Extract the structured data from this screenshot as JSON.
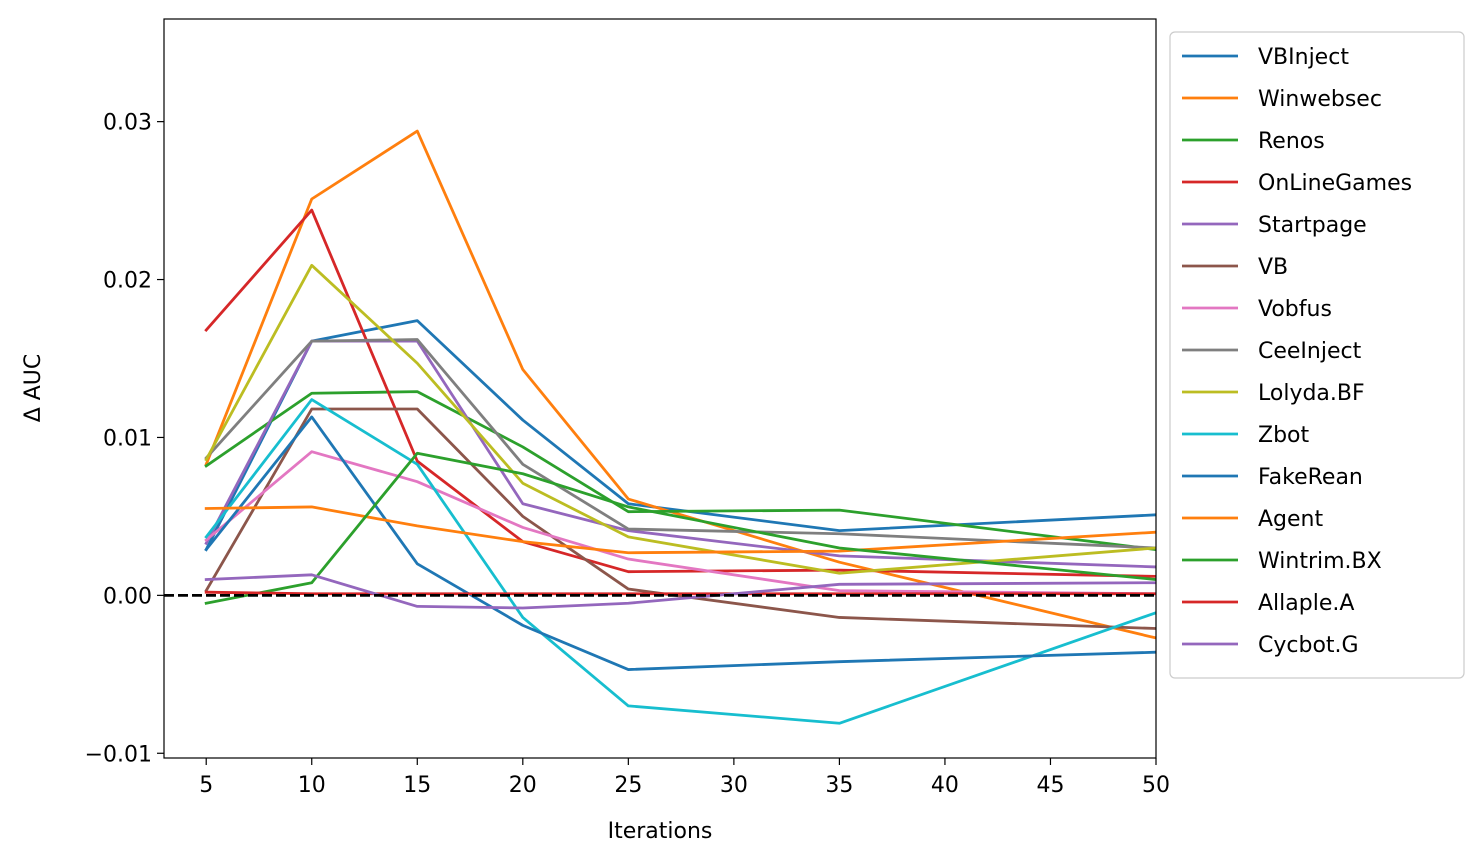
{
  "chart_data": {
    "type": "line",
    "title": "",
    "xlabel": "Iterations",
    "ylabel": "Δ AUC",
    "x": [
      5,
      10,
      15,
      20,
      25,
      35,
      50
    ],
    "xlim": [
      3,
      50
    ],
    "ylim": [
      -0.0103,
      0.0365
    ],
    "xticks": [
      5,
      10,
      15,
      20,
      25,
      30,
      35,
      40,
      45,
      50
    ],
    "xtick_labels": [
      "5",
      "10",
      "15",
      "20",
      "25",
      "30",
      "35",
      "40",
      "45",
      "50"
    ],
    "yticks": [
      -0.01,
      0,
      0.01,
      0.02,
      0.03
    ],
    "ytick_labels": [
      "−0.01",
      "0.00",
      "0.01",
      "0.02",
      "0.03"
    ],
    "grid": false,
    "legend_position": "outside-right",
    "reference_line": {
      "y": 0,
      "style": "dashed",
      "color": "#000000"
    },
    "series": [
      {
        "name": "VBInject",
        "color": "#1f77b4",
        "values": [
          0.0029,
          0.0161,
          0.0174,
          0.0111,
          0.0058,
          0.0041,
          0.0051
        ]
      },
      {
        "name": "Winwebsec",
        "color": "#ff7f0e",
        "values": [
          0.0083,
          0.0251,
          0.0294,
          0.0143,
          0.0061,
          0.0021,
          -0.0027
        ]
      },
      {
        "name": "Renos",
        "color": "#2ca02c",
        "values": [
          0.0082,
          0.0128,
          0.0129,
          0.0094,
          0.0053,
          0.0054,
          0.0029
        ]
      },
      {
        "name": "OnLineGames",
        "color": "#d62728",
        "values": [
          0.0168,
          0.0244,
          0.0085,
          0.0034,
          0.0015,
          0.0016,
          0.0012
        ]
      },
      {
        "name": "Startpage",
        "color": "#9467bd",
        "values": [
          0.0033,
          0.0161,
          0.0161,
          0.0058,
          0.0041,
          0.0025,
          0.0018
        ]
      },
      {
        "name": "VB",
        "color": "#8c564b",
        "values": [
          0.0003,
          0.0118,
          0.0118,
          0.005,
          0.0004,
          -0.0014,
          -0.0021
        ]
      },
      {
        "name": "Vobfus",
        "color": "#e377c2",
        "values": [
          0.0035,
          0.0091,
          0.0072,
          0.0043,
          0.0023,
          0.0003,
          0.0001
        ]
      },
      {
        "name": "CeeInject",
        "color": "#7f7f7f",
        "values": [
          0.0087,
          0.0161,
          0.0162,
          0.0083,
          0.0042,
          0.0039,
          0.003
        ]
      },
      {
        "name": "Lolyda.BF",
        "color": "#bcbd22",
        "values": [
          0.0086,
          0.0209,
          0.0147,
          0.0071,
          0.0037,
          0.0014,
          0.003
        ]
      },
      {
        "name": "Zbot",
        "color": "#17becf",
        "values": [
          0.0037,
          0.0124,
          0.0083,
          -0.0014,
          -0.007,
          -0.0081,
          -0.0011
        ]
      },
      {
        "name": "FakeRean",
        "color": "#1f77b4",
        "values": [
          0.0029,
          0.0113,
          0.002,
          -0.0019,
          -0.0047,
          -0.0042,
          -0.0036
        ]
      },
      {
        "name": "Agent",
        "color": "#ff7f0e",
        "values": [
          0.0055,
          0.0056,
          0.0044,
          0.0034,
          0.0027,
          0.0028,
          0.004
        ]
      },
      {
        "name": "Wintrim.BX",
        "color": "#2ca02c",
        "values": [
          -0.0005,
          0.0008,
          0.009,
          0.0077,
          0.0056,
          0.003,
          0.001
        ]
      },
      {
        "name": "Allaple.A",
        "color": "#d62728",
        "values": [
          0.0002,
          0.0001,
          0.0001,
          0.0001,
          0.0001,
          0.0001,
          0.0001
        ]
      },
      {
        "name": "Cycbot.G",
        "color": "#9467bd",
        "values": [
          0.001,
          0.0013,
          -0.0007,
          -0.0008,
          -0.0005,
          0.0007,
          0.0008
        ]
      }
    ]
  }
}
